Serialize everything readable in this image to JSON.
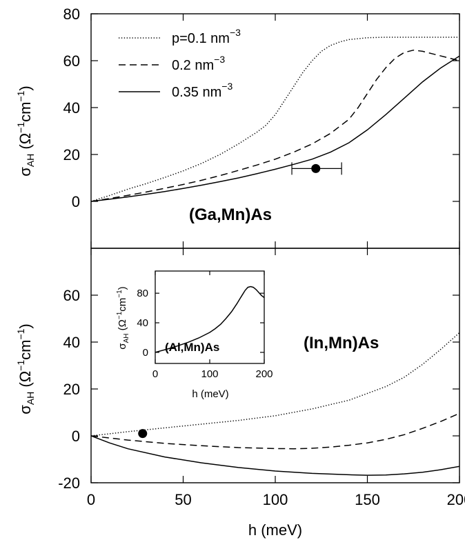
{
  "chart_data": [
    {
      "type": "line",
      "panel": "top",
      "annotation": "(Ga,Mn)As",
      "xlabel": "",
      "ylabel": "σAH (Ω⁻¹cm⁻¹)",
      "ylabel_parts": {
        "sym": "σ",
        "sym_sub": "AH",
        "open": " (Ω",
        "sup1": "−1",
        "mid": "cm",
        "sup2": "−1",
        "close": ")"
      },
      "xlim": [
        0,
        200
      ],
      "ylim": [
        -20,
        80
      ],
      "yticks": [
        "80",
        "60",
        "40",
        "20",
        "0"
      ],
      "ytick_values": [
        80,
        60,
        40,
        20,
        0
      ],
      "grid": false,
      "legend_position": "top-left",
      "legend": [
        {
          "name": "p=0.1 nm",
          "sup": "−3",
          "style": "dotted"
        },
        {
          "name": "0.2 nm",
          "sup": "−3",
          "style": "dashed"
        },
        {
          "name": "0.35 nm",
          "sup": "−3",
          "style": "solid"
        }
      ],
      "series": [
        {
          "key": "p01",
          "style": "dotted",
          "x": [
            0,
            10,
            20,
            30,
            40,
            50,
            60,
            70,
            80,
            90,
            95,
            100,
            105,
            110,
            115,
            120,
            125,
            130,
            135,
            140,
            150,
            160,
            170,
            180,
            190,
            200
          ],
          "y": [
            0,
            2.5,
            5.2,
            7.6,
            10.2,
            13,
            16.2,
            20,
            24.5,
            29.5,
            32.5,
            37,
            43,
            49,
            55,
            60,
            64,
            66.5,
            68,
            69,
            69.8,
            70,
            70,
            70,
            70,
            70
          ]
        },
        {
          "key": "p02",
          "style": "dashed",
          "x": [
            0,
            10,
            20,
            30,
            40,
            50,
            60,
            70,
            80,
            90,
            100,
            110,
            120,
            130,
            140,
            145,
            150,
            155,
            160,
            165,
            170,
            175,
            180,
            185,
            190,
            195,
            200
          ],
          "y": [
            0,
            1.2,
            2.6,
            4,
            5.6,
            7.2,
            9,
            11,
            13.2,
            15.5,
            18,
            21,
            24.5,
            29,
            35,
            40,
            46,
            52,
            57,
            61,
            63.5,
            64.5,
            64,
            63,
            62,
            61,
            60
          ]
        },
        {
          "key": "p035",
          "style": "solid",
          "x": [
            0,
            10,
            20,
            30,
            40,
            50,
            60,
            70,
            80,
            90,
            100,
            110,
            120,
            130,
            140,
            150,
            160,
            170,
            180,
            190,
            200
          ],
          "y": [
            0,
            0.9,
            1.9,
            3,
            4.2,
            5.5,
            6.9,
            8.4,
            10,
            11.8,
            13.7,
            15.8,
            18,
            21,
            25,
            30.5,
            37,
            44,
            51,
            57,
            62
          ]
        }
      ],
      "data_point": {
        "x": 122,
        "y": 14,
        "xerr": [
          109,
          136
        ]
      }
    },
    {
      "type": "line",
      "panel": "bottom",
      "annotation": "(In,Mn)As",
      "xlabel": "h (meV)",
      "ylabel": "σAH (Ω⁻¹cm⁻¹)",
      "ylabel_parts": {
        "sym": "σ",
        "sym_sub": "AH",
        "open": " (Ω",
        "sup1": "−1",
        "mid": "cm",
        "sup2": "−1",
        "close": ")"
      },
      "xlim": [
        0,
        200
      ],
      "ylim": [
        -20,
        80
      ],
      "xticks": [
        "0",
        "50",
        "100",
        "150",
        "200"
      ],
      "xtick_values": [
        0,
        50,
        100,
        150,
        200
      ],
      "yticks": [
        "60",
        "40",
        "20",
        "0",
        "-20"
      ],
      "ytick_values": [
        60,
        40,
        20,
        0,
        -20
      ],
      "grid": false,
      "series": [
        {
          "key": "p01",
          "style": "dotted",
          "x": [
            0,
            20,
            40,
            60,
            80,
            100,
            120,
            140,
            160,
            170,
            180,
            190,
            200
          ],
          "y": [
            0,
            1.8,
            3.4,
            5,
            6.6,
            8.6,
            11.5,
            15.2,
            21,
            25,
            30.5,
            37,
            44
          ]
        },
        {
          "key": "p02",
          "style": "dashed",
          "x": [
            0,
            20,
            40,
            60,
            80,
            100,
            110,
            120,
            130,
            140,
            150,
            160,
            170,
            180,
            190,
            200
          ],
          "y": [
            0,
            -1.8,
            -3.2,
            -4.2,
            -5,
            -5.4,
            -5.5,
            -5.3,
            -4.8,
            -4,
            -3,
            -1.5,
            0.5,
            3.2,
            6.2,
            9.6
          ]
        },
        {
          "key": "p035",
          "style": "solid",
          "x": [
            0,
            10,
            20,
            40,
            60,
            80,
            100,
            120,
            140,
            150,
            160,
            170,
            180,
            190,
            200
          ],
          "y": [
            0,
            -3,
            -5.5,
            -9,
            -11.5,
            -13.5,
            -15,
            -16,
            -16.6,
            -16.8,
            -16.7,
            -16.2,
            -15.5,
            -14.4,
            -13
          ]
        }
      ],
      "data_point": {
        "x": 28,
        "y": 1
      }
    },
    {
      "type": "line",
      "panel": "inset",
      "annotation": "(Al,Mn)As",
      "xlabel": "h (meV)",
      "ylabel": "σAH (Ω⁻¹cm⁻¹)",
      "ylabel_parts": {
        "sym": "σ",
        "sym_sub": "AH",
        "open": " (Ω",
        "sup1": "−1",
        "mid": "cm",
        "sup2": "−1",
        "close": ")"
      },
      "xlim": [
        0,
        200
      ],
      "ylim": [
        -15,
        110
      ],
      "xticks": [
        "0",
        "100",
        "200"
      ],
      "xtick_values": [
        0,
        100,
        200
      ],
      "yticks": [
        "80",
        "40",
        "0"
      ],
      "ytick_values": [
        80,
        40,
        0
      ],
      "series": [
        {
          "key": "p",
          "style": "solid",
          "x": [
            0,
            20,
            40,
            60,
            80,
            100,
            110,
            120,
            130,
            140,
            150,
            155,
            160,
            165,
            170,
            175,
            180,
            185,
            190,
            195,
            200
          ],
          "y": [
            0,
            4,
            8.5,
            13.5,
            19.5,
            27,
            32,
            38,
            46,
            55,
            66,
            72,
            78,
            84,
            88,
            89,
            88,
            85,
            81,
            77,
            74
          ]
        }
      ]
    }
  ]
}
